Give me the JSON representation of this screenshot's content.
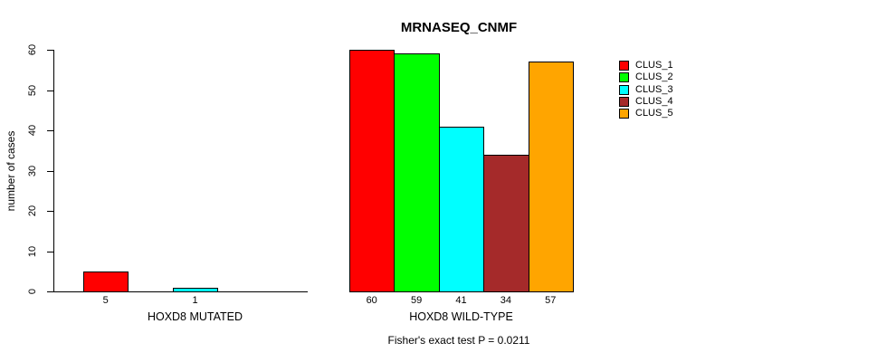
{
  "chart_data": {
    "type": "bar",
    "title": "MRNASEQ_CNMF",
    "subtitle": "Fisher's exact test P = 0.0211",
    "xlabel": "",
    "ylabel": "number of cases",
    "ylim": [
      0,
      60
    ],
    "yticks": [
      0,
      10,
      20,
      30,
      40,
      50,
      60
    ],
    "grid": false,
    "series": [
      {
        "name": "CLUS_1",
        "color": "#FF0000"
      },
      {
        "name": "CLUS_2",
        "color": "#00FF00"
      },
      {
        "name": "CLUS_3",
        "color": "#00FFFF"
      },
      {
        "name": "CLUS_4",
        "color": "#A52A2A"
      },
      {
        "name": "CLUS_5",
        "color": "#FFA500"
      }
    ],
    "groups": [
      {
        "label": "HOXD8 MUTATED",
        "values": [
          5,
          0,
          1,
          0,
          0
        ]
      },
      {
        "label": "HOXD8 WILD-TYPE",
        "values": [
          60,
          59,
          41,
          34,
          57
        ]
      }
    ],
    "legend": {
      "position": "right",
      "entries": [
        "CLUS_1",
        "CLUS_2",
        "CLUS_3",
        "CLUS_4",
        "CLUS_5"
      ]
    },
    "notes": {
      "value_labels": "bar values printed under each nonzero bar"
    }
  }
}
